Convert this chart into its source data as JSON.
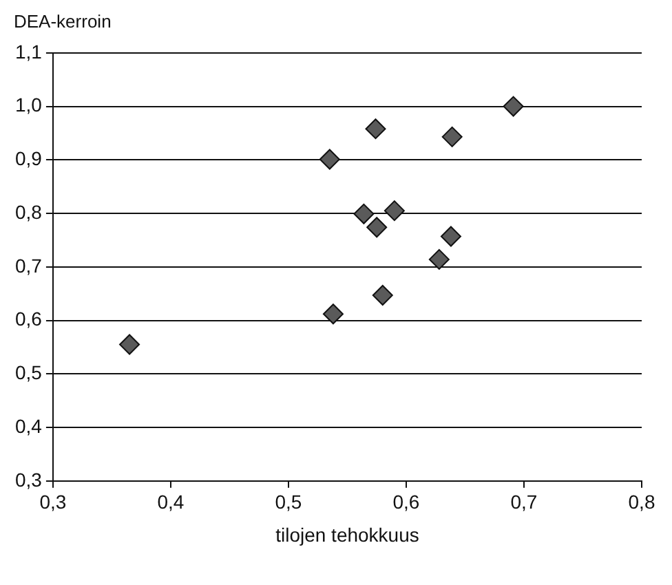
{
  "chart_data": {
    "type": "scatter",
    "xlabel": "tilojen tehokkuus",
    "ylabel": "DEA-kerroin",
    "x": [
      0.365,
      0.535,
      0.538,
      0.564,
      0.574,
      0.575,
      0.58,
      0.59,
      0.628,
      0.638,
      0.639,
      0.691
    ],
    "series": [
      {
        "color": "#5a5a5a",
        "values": [
          0.555,
          0.901,
          0.612,
          0.799,
          0.958,
          0.774,
          0.647,
          0.805,
          0.714,
          0.757,
          0.943,
          1.0
        ]
      }
    ],
    "xlim": [
      0.3,
      0.8
    ],
    "ylim": [
      0.3,
      1.1
    ],
    "xticks": [
      {
        "value": 0.3,
        "label": "0,3"
      },
      {
        "value": 0.4,
        "label": "0,4"
      },
      {
        "value": 0.5,
        "label": "0,5"
      },
      {
        "value": 0.6,
        "label": "0,6"
      },
      {
        "value": 0.7,
        "label": "0,7"
      },
      {
        "value": 0.8,
        "label": "0,8"
      }
    ],
    "yticks": [
      {
        "value": 0.3,
        "label": "0,3"
      },
      {
        "value": 0.4,
        "label": "0,4"
      },
      {
        "value": 0.5,
        "label": "0,5"
      },
      {
        "value": 0.6,
        "label": "0,6"
      },
      {
        "value": 0.7,
        "label": "0,7"
      },
      {
        "value": 0.8,
        "label": "0,8"
      },
      {
        "value": 0.9,
        "label": "0,9"
      },
      {
        "value": 1.0,
        "label": "1,0"
      },
      {
        "value": 1.1,
        "label": "1,1"
      }
    ],
    "grid": "y",
    "marker": "diamond",
    "legend": false
  }
}
